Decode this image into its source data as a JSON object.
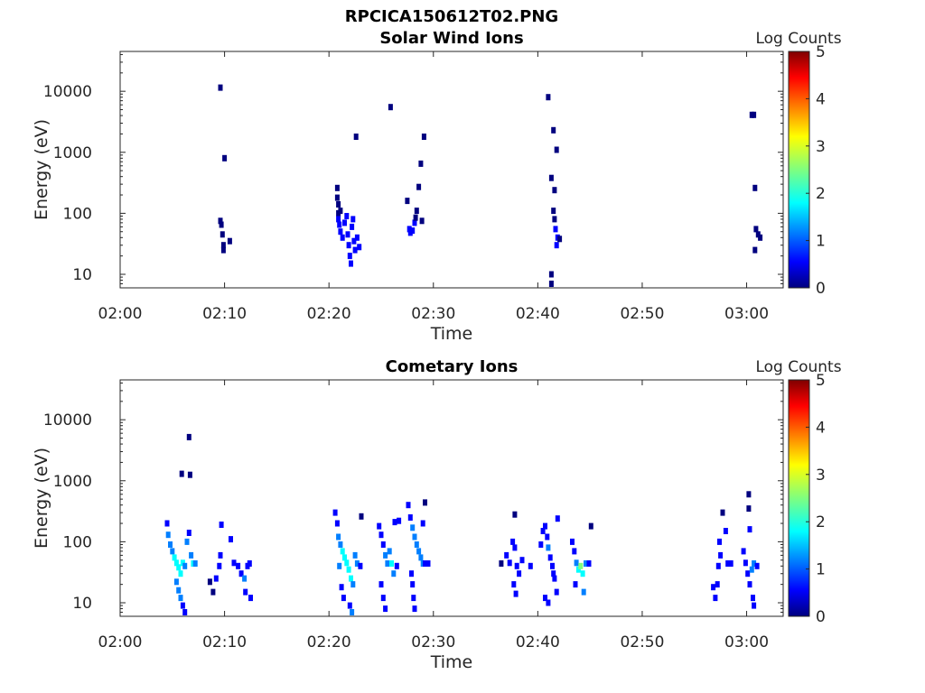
{
  "figure_title": "RPCICA150612T02.PNG",
  "colorscale": [
    "#00007f",
    "#0000ff",
    "#007fff",
    "#00ffff",
    "#7fff7f",
    "#ffff00",
    "#ff7f00",
    "#ff0000",
    "#7f0000"
  ],
  "chart_data": [
    {
      "type": "heatmap",
      "title": "Solar Wind Ions",
      "xlabel": "Time",
      "ylabel": "Energy (eV)",
      "x_ticks": [
        "02:00",
        "02:10",
        "02:20",
        "02:30",
        "02:40",
        "02:50",
        "03:00"
      ],
      "y_ticks": [
        "10",
        "100",
        "1000",
        "10000"
      ],
      "y_scale": "log",
      "ylim": [
        6,
        45000
      ],
      "colorbar": {
        "label": "Log Counts",
        "ticks": [
          "0",
          "1",
          "2",
          "3",
          "4",
          "5"
        ],
        "range": [
          0,
          5
        ]
      },
      "points": [
        [
          9.6,
          11500,
          0.3
        ],
        [
          10.0,
          800,
          0.3
        ],
        [
          9.6,
          75,
          0.3
        ],
        [
          9.7,
          65,
          0.3
        ],
        [
          9.8,
          45,
          0.3
        ],
        [
          9.9,
          30,
          0.3
        ],
        [
          9.9,
          25,
          0.3
        ],
        [
          10.5,
          35,
          0.3
        ],
        [
          20.8,
          260,
          0.3
        ],
        [
          20.8,
          180,
          0.3
        ],
        [
          20.9,
          140,
          0.3
        ],
        [
          20.9,
          100,
          0.3
        ],
        [
          21.1,
          110,
          0.3
        ],
        [
          20.9,
          80,
          0.4
        ],
        [
          21.0,
          65,
          0.4
        ],
        [
          21.1,
          50,
          0.4
        ],
        [
          21.3,
          40,
          0.4
        ],
        [
          21.5,
          70,
          0.4
        ],
        [
          21.7,
          90,
          0.4
        ],
        [
          21.8,
          45,
          0.4
        ],
        [
          21.9,
          30,
          0.4
        ],
        [
          22.0,
          20,
          0.4
        ],
        [
          22.1,
          15,
          0.4
        ],
        [
          22.2,
          60,
          0.4
        ],
        [
          22.3,
          80,
          0.4
        ],
        [
          22.4,
          35,
          0.4
        ],
        [
          22.5,
          25,
          0.4
        ],
        [
          22.7,
          40,
          0.4
        ],
        [
          22.9,
          28,
          0.4
        ],
        [
          22.6,
          1800,
          0.3
        ],
        [
          25.9,
          5500,
          0.3
        ],
        [
          27.5,
          160,
          0.3
        ],
        [
          27.7,
          55,
          0.4
        ],
        [
          27.8,
          48,
          0.4
        ],
        [
          28.0,
          52,
          0.4
        ],
        [
          28.2,
          70,
          0.4
        ],
        [
          28.3,
          85,
          0.3
        ],
        [
          28.4,
          110,
          0.3
        ],
        [
          28.6,
          270,
          0.3
        ],
        [
          28.8,
          650,
          0.3
        ],
        [
          28.9,
          75,
          0.3
        ],
        [
          29.1,
          1800,
          0.3
        ],
        [
          41.0,
          8000,
          0.3
        ],
        [
          41.5,
          2300,
          0.3
        ],
        [
          41.8,
          1100,
          0.3
        ],
        [
          41.3,
          380,
          0.3
        ],
        [
          41.6,
          240,
          0.3
        ],
        [
          41.5,
          110,
          0.3
        ],
        [
          41.6,
          80,
          0.3
        ],
        [
          41.7,
          55,
          0.4
        ],
        [
          41.9,
          40,
          0.4
        ],
        [
          41.8,
          30,
          0.4
        ],
        [
          42.1,
          38,
          0.3
        ],
        [
          41.3,
          10,
          0.3
        ],
        [
          41.3,
          7,
          0.3
        ],
        [
          60.5,
          4100,
          0.3
        ],
        [
          60.7,
          4100,
          0.3
        ],
        [
          60.8,
          260,
          0.3
        ],
        [
          60.9,
          55,
          0.3
        ],
        [
          61.1,
          45,
          0.3
        ],
        [
          61.3,
          40,
          0.3
        ],
        [
          60.8,
          25,
          0.3
        ]
      ]
    },
    {
      "type": "heatmap",
      "title": "Cometary Ions",
      "xlabel": "Time",
      "ylabel": "Energy (eV)",
      "x_ticks": [
        "02:00",
        "02:10",
        "02:20",
        "02:30",
        "02:40",
        "02:50",
        "03:00"
      ],
      "y_ticks": [
        "10",
        "100",
        "1000",
        "10000"
      ],
      "y_scale": "log",
      "ylim": [
        6,
        45000
      ],
      "colorbar": {
        "label": "Log Counts",
        "ticks": [
          "0",
          "1",
          "2",
          "3",
          "4",
          "5"
        ],
        "range": [
          0,
          5
        ]
      },
      "points": [
        [
          6.6,
          5200,
          0.3
        ],
        [
          5.9,
          1300,
          0.3
        ],
        [
          6.7,
          1250,
          0.3
        ],
        [
          4.5,
          200,
          0.8
        ],
        [
          4.6,
          130,
          1.0
        ],
        [
          4.8,
          90,
          1.3
        ],
        [
          5.0,
          70,
          1.5
        ],
        [
          5.2,
          55,
          1.6
        ],
        [
          5.4,
          45,
          1.8
        ],
        [
          5.6,
          38,
          1.9
        ],
        [
          5.8,
          30,
          1.9
        ],
        [
          6.0,
          45,
          1.7
        ],
        [
          6.2,
          40,
          1.5
        ],
        [
          6.4,
          100,
          1.1
        ],
        [
          6.6,
          140,
          0.9
        ],
        [
          6.8,
          60,
          1.2
        ],
        [
          7.0,
          44,
          1.6
        ],
        [
          7.2,
          44,
          1.3
        ],
        [
          5.4,
          22,
          1.4
        ],
        [
          5.6,
          16,
          1.2
        ],
        [
          5.8,
          12,
          1.0
        ],
        [
          6.0,
          9,
          0.9
        ],
        [
          6.2,
          7,
          0.8
        ],
        [
          8.6,
          22,
          0.3
        ],
        [
          8.9,
          15,
          0.3
        ],
        [
          9.2,
          25,
          0.4
        ],
        [
          9.5,
          40,
          0.6
        ],
        [
          9.6,
          60,
          0.5
        ],
        [
          9.7,
          190,
          0.4
        ],
        [
          10.6,
          110,
          0.4
        ],
        [
          10.9,
          45,
          0.6
        ],
        [
          11.3,
          40,
          0.5
        ],
        [
          11.6,
          30,
          0.9
        ],
        [
          11.9,
          25,
          1.3
        ],
        [
          12.2,
          40,
          0.8
        ],
        [
          12.4,
          44,
          0.5
        ],
        [
          12.0,
          15,
          0.7
        ],
        [
          12.5,
          12,
          0.6
        ],
        [
          20.6,
          300,
          0.6
        ],
        [
          20.8,
          200,
          0.9
        ],
        [
          20.9,
          120,
          1.2
        ],
        [
          21.1,
          90,
          1.4
        ],
        [
          21.3,
          70,
          1.6
        ],
        [
          21.5,
          55,
          1.7
        ],
        [
          21.7,
          45,
          1.8
        ],
        [
          21.9,
          35,
          1.9
        ],
        [
          22.1,
          25,
          1.7
        ],
        [
          22.3,
          20,
          1.4
        ],
        [
          22.5,
          60,
          1.2
        ],
        [
          22.7,
          44,
          1.0
        ],
        [
          23.0,
          40,
          0.8
        ],
        [
          21.0,
          40,
          1.0
        ],
        [
          21.2,
          18,
          0.9
        ],
        [
          21.4,
          12,
          0.8
        ],
        [
          22.0,
          9,
          0.9
        ],
        [
          22.2,
          7,
          1.0
        ],
        [
          23.1,
          260,
          0.3
        ],
        [
          24.8,
          180,
          0.6
        ],
        [
          25.0,
          130,
          0.8
        ],
        [
          25.2,
          90,
          0.9
        ],
        [
          25.4,
          60,
          1.0
        ],
        [
          25.6,
          44,
          1.1
        ],
        [
          25.8,
          70,
          1.4
        ],
        [
          26.0,
          44,
          1.6
        ],
        [
          26.2,
          30,
          1.3
        ],
        [
          26.5,
          40,
          0.9
        ],
        [
          25.0,
          20,
          0.6
        ],
        [
          25.2,
          12,
          0.5
        ],
        [
          25.4,
          8,
          0.5
        ],
        [
          26.3,
          210,
          0.6
        ],
        [
          26.7,
          220,
          0.4
        ],
        [
          27.6,
          400,
          0.6
        ],
        [
          27.8,
          250,
          0.8
        ],
        [
          28.0,
          170,
          1.0
        ],
        [
          28.2,
          120,
          1.2
        ],
        [
          28.4,
          90,
          1.4
        ],
        [
          28.6,
          70,
          1.5
        ],
        [
          28.8,
          55,
          1.2
        ],
        [
          29.0,
          44,
          1.0
        ],
        [
          29.2,
          44,
          0.8
        ],
        [
          29.5,
          44,
          0.6
        ],
        [
          27.9,
          30,
          0.5
        ],
        [
          28.0,
          20,
          0.5
        ],
        [
          28.1,
          12,
          0.5
        ],
        [
          28.2,
          8,
          0.5
        ],
        [
          29.0,
          200,
          0.4
        ],
        [
          29.2,
          440,
          0.3
        ],
        [
          36.5,
          44,
          0.3
        ],
        [
          37.0,
          60,
          0.5
        ],
        [
          37.3,
          45,
          0.6
        ],
        [
          37.6,
          100,
          0.5
        ],
        [
          37.8,
          80,
          0.6
        ],
        [
          38.0,
          40,
          0.8
        ],
        [
          38.2,
          30,
          0.6
        ],
        [
          38.5,
          50,
          0.5
        ],
        [
          37.7,
          20,
          0.6
        ],
        [
          37.9,
          14,
          0.7
        ],
        [
          37.8,
          280,
          0.3
        ],
        [
          39.3,
          40,
          0.4
        ],
        [
          40.3,
          90,
          0.5
        ],
        [
          40.5,
          150,
          0.6
        ],
        [
          40.7,
          180,
          0.5
        ],
        [
          40.9,
          120,
          0.8
        ],
        [
          41.0,
          80,
          1.0
        ],
        [
          41.2,
          55,
          0.9
        ],
        [
          41.4,
          40,
          0.7
        ],
        [
          41.6,
          25,
          0.6
        ],
        [
          41.8,
          15,
          0.6
        ],
        [
          41.9,
          240,
          0.5
        ],
        [
          41.5,
          30,
          0.8
        ],
        [
          40.7,
          12,
          0.6
        ],
        [
          41.0,
          10,
          0.5
        ],
        [
          43.3,
          100,
          0.5
        ],
        [
          43.5,
          70,
          0.6
        ],
        [
          43.7,
          45,
          1.5
        ],
        [
          43.9,
          35,
          2.1
        ],
        [
          44.1,
          40,
          2.3
        ],
        [
          44.3,
          30,
          2.0
        ],
        [
          44.6,
          44,
          1.4
        ],
        [
          44.9,
          44,
          0.8
        ],
        [
          45.1,
          180,
          0.3
        ],
        [
          44.4,
          15,
          1.2
        ],
        [
          43.6,
          20,
          0.4
        ],
        [
          56.8,
          18,
          0.4
        ],
        [
          57.0,
          12,
          0.5
        ],
        [
          57.2,
          20,
          0.6
        ],
        [
          57.3,
          40,
          0.6
        ],
        [
          57.5,
          60,
          0.5
        ],
        [
          57.4,
          100,
          0.4
        ],
        [
          57.7,
          300,
          0.3
        ],
        [
          58.0,
          150,
          0.4
        ],
        [
          58.2,
          44,
          0.5
        ],
        [
          58.5,
          44,
          0.4
        ],
        [
          59.7,
          70,
          0.4
        ],
        [
          59.9,
          45,
          0.6
        ],
        [
          60.1,
          30,
          0.7
        ],
        [
          60.3,
          20,
          0.9
        ],
        [
          60.5,
          35,
          1.0
        ],
        [
          60.7,
          44,
          1.3
        ],
        [
          61.0,
          40,
          0.9
        ],
        [
          60.6,
          12,
          0.7
        ],
        [
          60.7,
          9,
          0.6
        ],
        [
          60.2,
          600,
          0.3
        ],
        [
          60.2,
          350,
          0.3
        ],
        [
          60.3,
          160,
          0.4
        ]
      ]
    }
  ]
}
